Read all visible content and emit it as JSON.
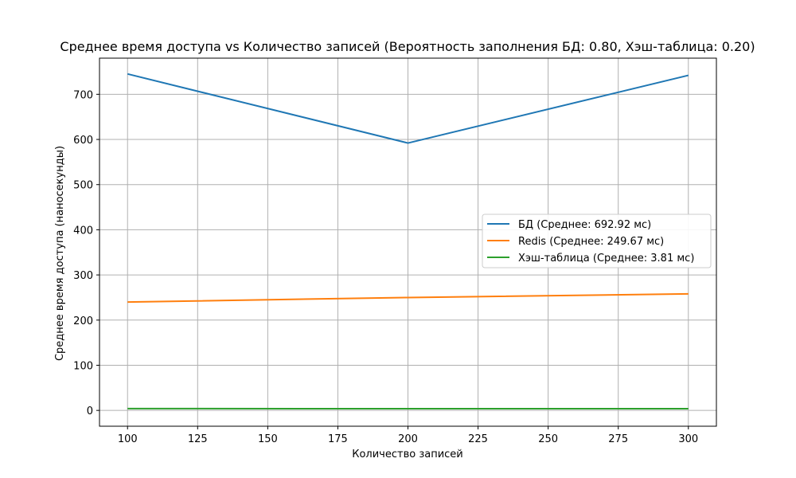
{
  "chart_data": {
    "type": "line",
    "title": "Среднее время доступа vs Количество записей (Вероятность заполнения БД: 0.80, Хэш-таблица: 0.20)",
    "xlabel": "Количество записей",
    "ylabel": "Среднее время доступа (наносекунды)",
    "xlim": [
      90,
      310
    ],
    "ylim": [
      -35,
      780
    ],
    "xticks": [
      100,
      125,
      150,
      175,
      200,
      225,
      250,
      275,
      300
    ],
    "yticks": [
      0,
      100,
      200,
      300,
      400,
      500,
      600,
      700
    ],
    "grid": true,
    "legend_position": "center-right",
    "x": [
      100,
      200,
      300
    ],
    "series": [
      {
        "name": "БД (Среднее: 692.92 мс)",
        "color": "#1f77b4",
        "values": [
          745,
          592,
          742
        ]
      },
      {
        "name": "Redis (Среднее: 249.67 мс)",
        "color": "#ff7f0e",
        "values": [
          240,
          250,
          258
        ]
      },
      {
        "name": "Хэш-таблица (Среднее: 3.81 мс)",
        "color": "#2ca02c",
        "values": [
          4.0,
          3.7,
          3.8
        ]
      }
    ]
  }
}
